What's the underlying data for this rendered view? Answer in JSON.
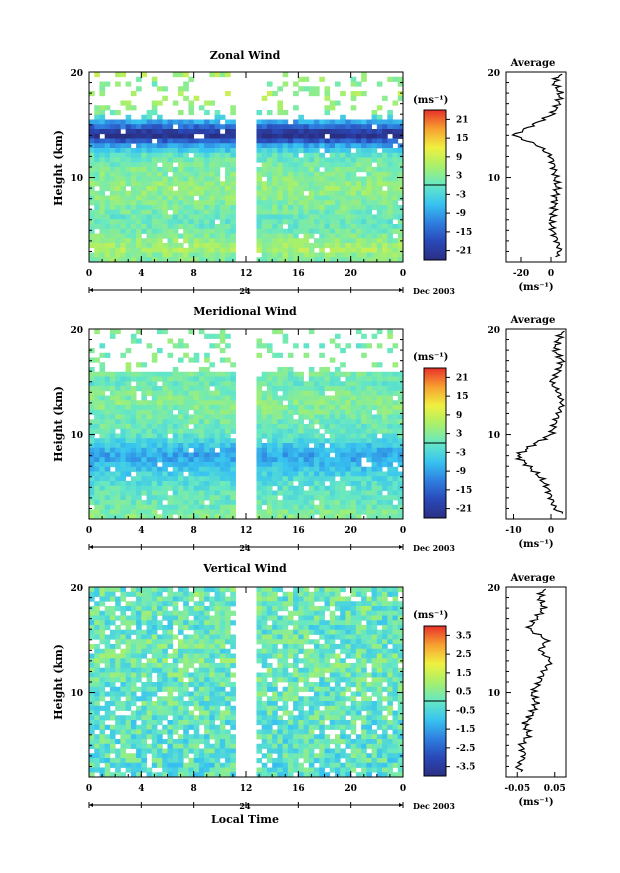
{
  "figure": {
    "xlabel": "Local Time",
    "date_label": "Dec 2003",
    "day_label": "24",
    "panel_ylabel": "Height (km)",
    "unit_label": "(ms⁻¹)",
    "avg_title": "Average"
  },
  "chart_data": [
    {
      "type": "heatmap",
      "title": "Zonal Wind",
      "xlabel": "",
      "ylabel": "Height (km)",
      "xlim": [
        0,
        24
      ],
      "xticks": [
        "0",
        "4",
        "8",
        "12",
        "16",
        "20",
        "0"
      ],
      "ylim": [
        2,
        20
      ],
      "yticks": [
        "10",
        "20"
      ],
      "data_gap_hours": [
        11,
        13
      ],
      "colorbar": {
        "unit": "(ms⁻¹)",
        "range": [
          -24,
          24
        ],
        "ticks": [
          "21",
          "15",
          "9",
          "3",
          "-3",
          "-9",
          "-15",
          "-21"
        ]
      },
      "average_profile": {
        "title": "Average",
        "xticks": [
          "-20",
          "0"
        ],
        "xlim": [
          -30,
          10
        ],
        "xunit": "(ms⁻¹)",
        "height_km": [
          2.5,
          3,
          4,
          5,
          6,
          7,
          8,
          9,
          10,
          11,
          12,
          13,
          14,
          15,
          16,
          17,
          18,
          19,
          19.8
        ],
        "values": [
          3,
          6,
          4,
          1,
          0,
          2,
          3,
          4,
          3,
          2,
          0,
          -8,
          -25,
          -12,
          1,
          5,
          6,
          2,
          6
        ]
      }
    },
    {
      "type": "heatmap",
      "title": "Meridional Wind",
      "xlabel": "",
      "ylabel": "Height (km)",
      "xlim": [
        0,
        24
      ],
      "xticks": [
        "0",
        "4",
        "8",
        "12",
        "16",
        "20",
        "0"
      ],
      "ylim": [
        2,
        20
      ],
      "yticks": [
        "10",
        "20"
      ],
      "data_gap_hours": [
        11,
        13
      ],
      "colorbar": {
        "unit": "(ms⁻¹)",
        "range": [
          -24,
          24
        ],
        "ticks": [
          "21",
          "15",
          "9",
          "3",
          "-3",
          "-9",
          "-15",
          "-21"
        ]
      },
      "average_profile": {
        "title": "Average",
        "xticks": [
          "-10",
          "0"
        ],
        "xlim": [
          -12,
          4
        ],
        "xunit": "(ms⁻¹)",
        "height_km": [
          2.5,
          3,
          4,
          5,
          6,
          7,
          8,
          9,
          10,
          11,
          12,
          13,
          14,
          15,
          16,
          17,
          18,
          19,
          19.8
        ],
        "values": [
          3,
          1,
          0,
          -1,
          -3,
          -6,
          -9,
          -5,
          0,
          1,
          2,
          3,
          2,
          0,
          2,
          3,
          1,
          2,
          3
        ]
      }
    },
    {
      "type": "heatmap",
      "title": "Vertical Wind",
      "xlabel": "Local Time",
      "ylabel": "Height (km)",
      "xlim": [
        0,
        24
      ],
      "xticks": [
        "0",
        "4",
        "8",
        "12",
        "16",
        "20",
        "0"
      ],
      "ylim": [
        2,
        20
      ],
      "yticks": [
        "10",
        "20"
      ],
      "data_gap_hours": [
        11,
        13
      ],
      "colorbar": {
        "unit": "(ms⁻¹)",
        "range": [
          -4,
          4
        ],
        "ticks": [
          "3.5",
          "2.5",
          "1.5",
          "0.5",
          "-0.5",
          "-1.5",
          "-2.5",
          "-3.5"
        ]
      },
      "average_profile": {
        "title": "Average",
        "xticks": [
          "-0.05",
          "0.05"
        ],
        "xlim": [
          -0.08,
          0.08
        ],
        "xunit": "(ms⁻¹)",
        "height_km": [
          2.5,
          3,
          4,
          5,
          6,
          7,
          8,
          9,
          10,
          11,
          12,
          13,
          14,
          15,
          16,
          17,
          18,
          19,
          19.8
        ],
        "values": [
          -0.04,
          -0.05,
          -0.03,
          -0.04,
          -0.02,
          -0.03,
          -0.01,
          0.0,
          -0.01,
          0.01,
          0.02,
          0.04,
          0.01,
          0.03,
          -0.02,
          0.0,
          0.02,
          0.01,
          0.02
        ]
      }
    }
  ]
}
